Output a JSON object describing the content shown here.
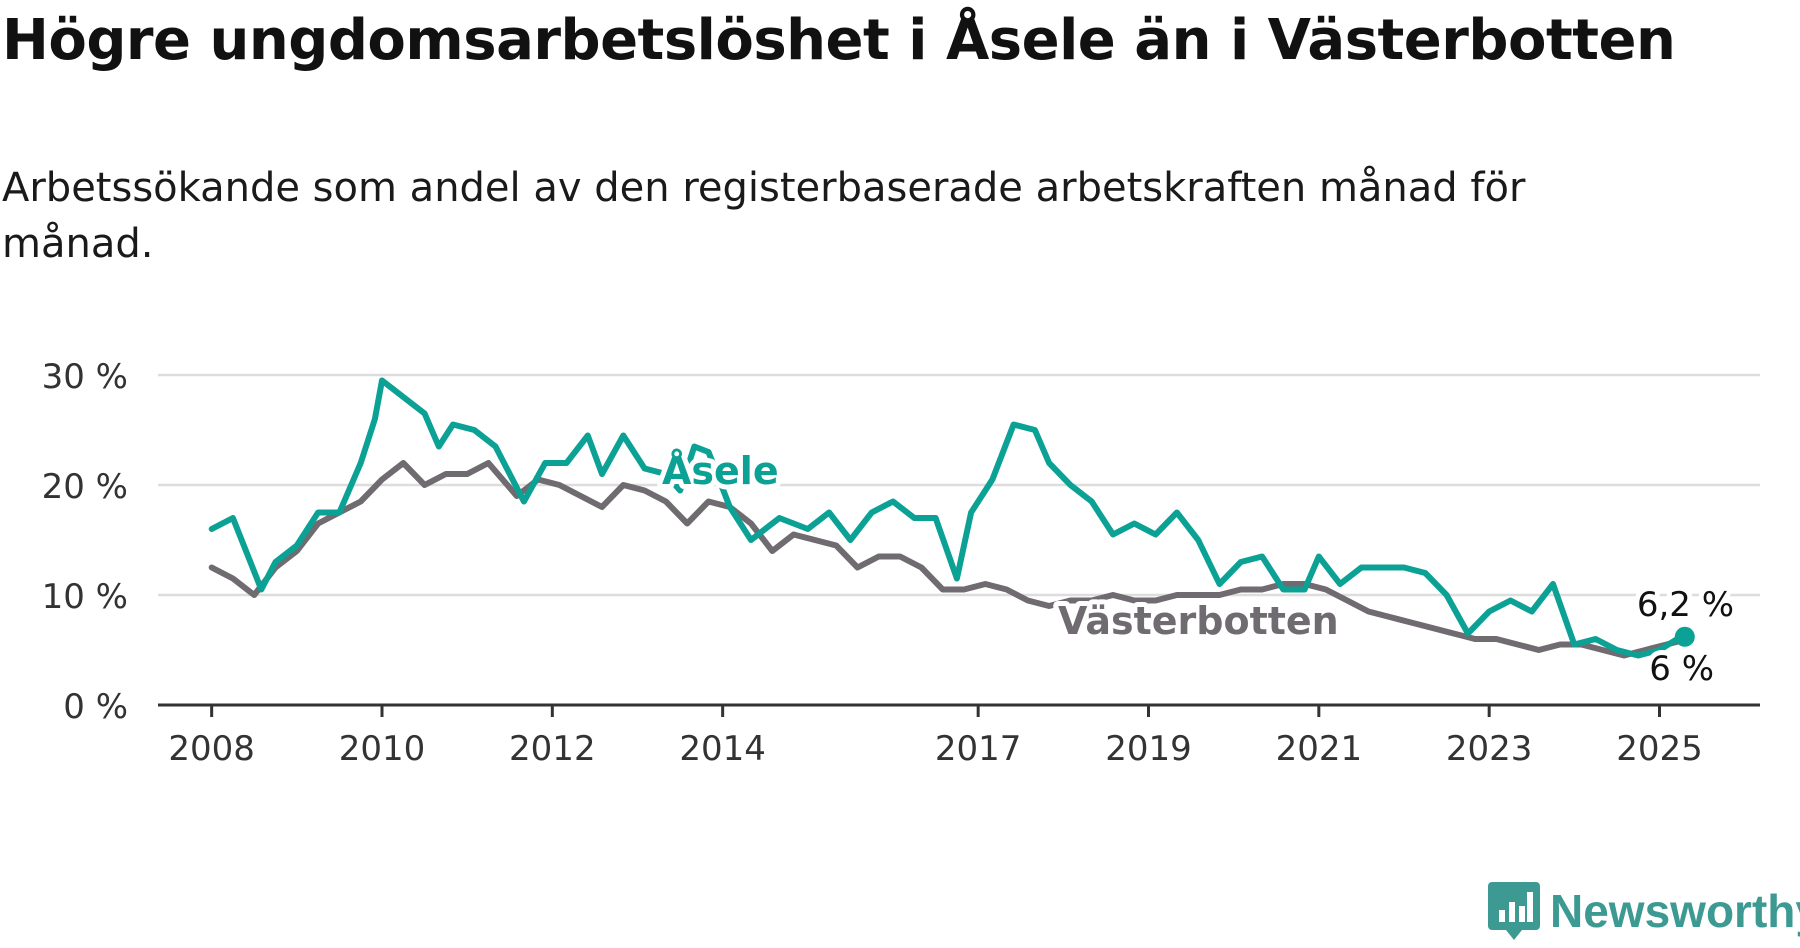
{
  "title": "Högre ungdomsarbetslöshet i Åsele än i Västerbotten",
  "subtitle": "Arbetssökande som andel av den registerbaserade arbetskraften månad för månad.",
  "brand": "Newsworthy",
  "colors": {
    "asele": "#0ca195",
    "vasterbotten": "#6f6b70",
    "grid": "#dddddd",
    "axis": "#333333",
    "brand": "#3c9a93"
  },
  "chart_data": {
    "type": "line",
    "y_ticks": [
      "0 %",
      "10 %",
      "20 %",
      "30 %"
    ],
    "x_ticks": [
      "2008",
      "2010",
      "2012",
      "2014",
      "2017",
      "2019",
      "2021",
      "2023",
      "2025"
    ],
    "ylim": [
      0,
      30
    ],
    "grid": true,
    "series": [
      {
        "name": "Åsele",
        "end_label": "6,2 %",
        "points": [
          [
            "2008-01",
            16.0
          ],
          [
            "2008-04",
            17.0
          ],
          [
            "2008-08",
            10.5
          ],
          [
            "2008-10",
            13.0
          ],
          [
            "2009-01",
            14.5
          ],
          [
            "2009-04",
            17.5
          ],
          [
            "2009-07",
            17.5
          ],
          [
            "2009-10",
            22.0
          ],
          [
            "2009-12",
            26.0
          ],
          [
            "2010-01",
            29.5
          ],
          [
            "2010-04",
            28.0
          ],
          [
            "2010-07",
            26.5
          ],
          [
            "2010-09",
            23.5
          ],
          [
            "2010-11",
            25.5
          ],
          [
            "2011-02",
            25.0
          ],
          [
            "2011-05",
            23.5
          ],
          [
            "2011-09",
            18.5
          ],
          [
            "2011-12",
            22.0
          ],
          [
            "2012-03",
            22.0
          ],
          [
            "2012-06",
            24.5
          ],
          [
            "2012-08",
            21.0
          ],
          [
            "2012-11",
            24.5
          ],
          [
            "2013-02",
            21.5
          ],
          [
            "2013-05",
            21.0
          ],
          [
            "2013-07",
            19.5
          ],
          [
            "2013-09",
            23.5
          ],
          [
            "2013-11",
            23.0
          ],
          [
            "2014-02",
            18.0
          ],
          [
            "2014-05",
            15.0
          ],
          [
            "2014-09",
            17.0
          ],
          [
            "2015-01",
            16.0
          ],
          [
            "2015-04",
            17.5
          ],
          [
            "2015-07",
            15.0
          ],
          [
            "2015-10",
            17.5
          ],
          [
            "2016-01",
            18.5
          ],
          [
            "2016-04",
            17.0
          ],
          [
            "2016-07",
            17.0
          ],
          [
            "2016-10",
            11.5
          ],
          [
            "2016-12",
            17.5
          ],
          [
            "2017-03",
            20.5
          ],
          [
            "2017-06",
            25.5
          ],
          [
            "2017-09",
            25.0
          ],
          [
            "2017-11",
            22.0
          ],
          [
            "2018-02",
            20.0
          ],
          [
            "2018-05",
            18.5
          ],
          [
            "2018-08",
            15.5
          ],
          [
            "2018-11",
            16.5
          ],
          [
            "2019-02",
            15.5
          ],
          [
            "2019-05",
            17.5
          ],
          [
            "2019-08",
            15.0
          ],
          [
            "2019-11",
            11.0
          ],
          [
            "2020-02",
            13.0
          ],
          [
            "2020-05",
            13.5
          ],
          [
            "2020-08",
            10.5
          ],
          [
            "2020-11",
            10.5
          ],
          [
            "2021-01",
            13.5
          ],
          [
            "2021-04",
            11.0
          ],
          [
            "2021-07",
            12.5
          ],
          [
            "2021-10",
            12.5
          ],
          [
            "2022-01",
            12.5
          ],
          [
            "2022-04",
            12.0
          ],
          [
            "2022-07",
            10.0
          ],
          [
            "2022-10",
            6.5
          ],
          [
            "2023-01",
            8.5
          ],
          [
            "2023-04",
            9.5
          ],
          [
            "2023-07",
            8.5
          ],
          [
            "2023-10",
            11.0
          ],
          [
            "2024-01",
            5.5
          ],
          [
            "2024-04",
            6.0
          ],
          [
            "2024-07",
            5.0
          ],
          [
            "2024-10",
            4.5
          ],
          [
            "2025-01",
            5.0
          ],
          [
            "2025-04",
            6.2
          ]
        ]
      },
      {
        "name": "Västerbotten",
        "end_label": "6 %",
        "points": [
          [
            "2008-01",
            12.5
          ],
          [
            "2008-04",
            11.5
          ],
          [
            "2008-07",
            10.0
          ],
          [
            "2008-10",
            12.5
          ],
          [
            "2009-01",
            14.0
          ],
          [
            "2009-04",
            16.5
          ],
          [
            "2009-07",
            17.5
          ],
          [
            "2009-10",
            18.5
          ],
          [
            "2010-01",
            20.5
          ],
          [
            "2010-04",
            22.0
          ],
          [
            "2010-07",
            20.0
          ],
          [
            "2010-10",
            21.0
          ],
          [
            "2011-01",
            21.0
          ],
          [
            "2011-04",
            22.0
          ],
          [
            "2011-08",
            19.0
          ],
          [
            "2011-11",
            20.5
          ],
          [
            "2012-02",
            20.0
          ],
          [
            "2012-05",
            19.0
          ],
          [
            "2012-08",
            18.0
          ],
          [
            "2012-11",
            20.0
          ],
          [
            "2013-02",
            19.5
          ],
          [
            "2013-05",
            18.5
          ],
          [
            "2013-08",
            16.5
          ],
          [
            "2013-11",
            18.5
          ],
          [
            "2014-02",
            18.0
          ],
          [
            "2014-05",
            16.5
          ],
          [
            "2014-08",
            14.0
          ],
          [
            "2014-11",
            15.5
          ],
          [
            "2015-02",
            15.0
          ],
          [
            "2015-05",
            14.5
          ],
          [
            "2015-08",
            12.5
          ],
          [
            "2015-11",
            13.5
          ],
          [
            "2016-02",
            13.5
          ],
          [
            "2016-05",
            12.5
          ],
          [
            "2016-08",
            10.5
          ],
          [
            "2016-11",
            10.5
          ],
          [
            "2017-02",
            11.0
          ],
          [
            "2017-05",
            10.5
          ],
          [
            "2017-08",
            9.5
          ],
          [
            "2017-11",
            9.0
          ],
          [
            "2018-02",
            9.5
          ],
          [
            "2018-05",
            9.5
          ],
          [
            "2018-08",
            10.0
          ],
          [
            "2018-11",
            9.5
          ],
          [
            "2019-02",
            9.5
          ],
          [
            "2019-05",
            10.0
          ],
          [
            "2019-08",
            10.0
          ],
          [
            "2019-11",
            10.0
          ],
          [
            "2020-02",
            10.5
          ],
          [
            "2020-05",
            10.5
          ],
          [
            "2020-08",
            11.0
          ],
          [
            "2020-11",
            11.0
          ],
          [
            "2021-02",
            10.5
          ],
          [
            "2021-05",
            9.5
          ],
          [
            "2021-08",
            8.5
          ],
          [
            "2021-11",
            8.0
          ],
          [
            "2022-02",
            7.5
          ],
          [
            "2022-05",
            7.0
          ],
          [
            "2022-08",
            6.5
          ],
          [
            "2022-11",
            6.0
          ],
          [
            "2023-02",
            6.0
          ],
          [
            "2023-05",
            5.5
          ],
          [
            "2023-08",
            5.0
          ],
          [
            "2023-11",
            5.5
          ],
          [
            "2024-02",
            5.5
          ],
          [
            "2024-05",
            5.0
          ],
          [
            "2024-08",
            4.5
          ],
          [
            "2024-11",
            5.0
          ],
          [
            "2025-02",
            5.5
          ],
          [
            "2025-05",
            6.0
          ]
        ]
      }
    ]
  }
}
